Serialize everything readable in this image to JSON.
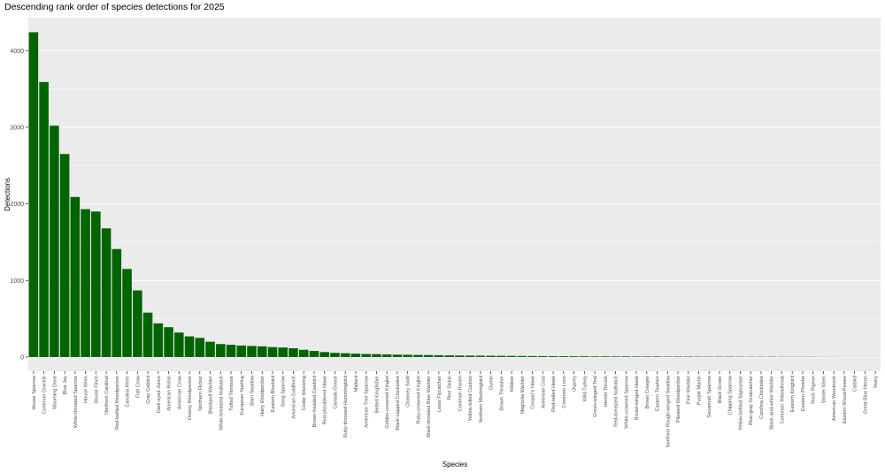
{
  "chart_data": {
    "type": "bar",
    "title": "Descending rank order of species detections for 2025",
    "x_label": "Species",
    "y_label": "Detections",
    "categories": [
      "House Sparrow",
      "Common Grackle",
      "Mourning Dove",
      "Blue Jay",
      "White-throated Sparrow",
      "House Wren",
      "House Finch",
      "Northern Cardinal",
      "Red-bellied Woodpecker",
      "Carolina Wren",
      "Fish Crow",
      "Gray Catbird",
      "Dark-eyed Junco",
      "American Robin",
      "American Crow",
      "Downy Woodpecker",
      "Northern Flicker",
      "Blackpoll Warbler",
      "White-breasted Nuthatch",
      "Tufted Titmouse",
      "European Starling",
      "Barn Swallow",
      "Hairy Woodpecker",
      "Eastern Bluebird",
      "Song Sparrow",
      "American Goldfinch",
      "Cedar Waxwing",
      "Brown-headed Cowbird",
      "Red-shouldered Hawk",
      "Canada Goose",
      "Ruby-throated Hummingbird",
      "Mallard",
      "American Tree Sparrow",
      "Belted Kingfisher",
      "Golden-crowned Kinglet",
      "Black-capped Chickadee",
      "Chimney Swift",
      "Ruby-crowned Kinglet",
      "Black-throated Blue Warbler",
      "Least Flycatcher",
      "Pine Siskin",
      "Common Raven",
      "Yellow-billed Cuckoo",
      "Northern Mockingbird",
      "Dunlin",
      "Brown Thrasher",
      "Killdeer",
      "Magnolia Warbler",
      "Cooper's Hawk",
      "American Coot",
      "Red-tailed Hawk",
      "Common Loon",
      "Osprey",
      "Wild Turkey",
      "Green-winged Teal",
      "Hermit Thrush",
      "Red-breasted Nuthatch",
      "White-crowned Sparrow",
      "Broad-winged Hawk",
      "Brown Creeper",
      "Eastern Towhee",
      "Northern Rough-winged Swallow",
      "Pileated Woodpecker",
      "Pine Warbler",
      "Purple Martin",
      "Savannah Sparrow",
      "Black Scoter",
      "Chipping Sparrow",
      "Yellow-bellied Sapsucker",
      "Blue-gray Gnatcatcher",
      "Carolina Chickadee",
      "Black-and-white Warbler",
      "Common Yellowthroat",
      "Eastern Kingbird",
      "Eastern Phoebe",
      "Rock Pigeon",
      "Winter Wren",
      "American Woodcock",
      "Eastern Wood-Pewee",
      "Catbird",
      "Great Blue Heron",
      "Veery"
    ],
    "values": [
      4240,
      3590,
      3020,
      2650,
      2090,
      1930,
      1900,
      1680,
      1410,
      1150,
      870,
      580,
      440,
      390,
      320,
      270,
      250,
      200,
      170,
      160,
      150,
      145,
      140,
      130,
      125,
      115,
      95,
      80,
      65,
      55,
      50,
      45,
      40,
      38,
      35,
      32,
      30,
      28,
      26,
      24,
      22,
      20,
      19,
      18,
      17,
      16,
      15,
      14,
      13,
      12,
      11,
      11,
      10,
      10,
      9,
      9,
      8,
      8,
      7,
      7,
      7,
      6,
      6,
      6,
      5,
      5,
      5,
      5,
      4,
      4,
      4,
      4,
      3,
      3,
      3,
      3,
      2,
      2,
      1,
      1,
      1,
      1
    ],
    "color": "#006400",
    "ylim": [
      -185,
      4430
    ],
    "yticks": [
      0,
      1000,
      2000,
      3000,
      4000
    ],
    "grid": true
  }
}
